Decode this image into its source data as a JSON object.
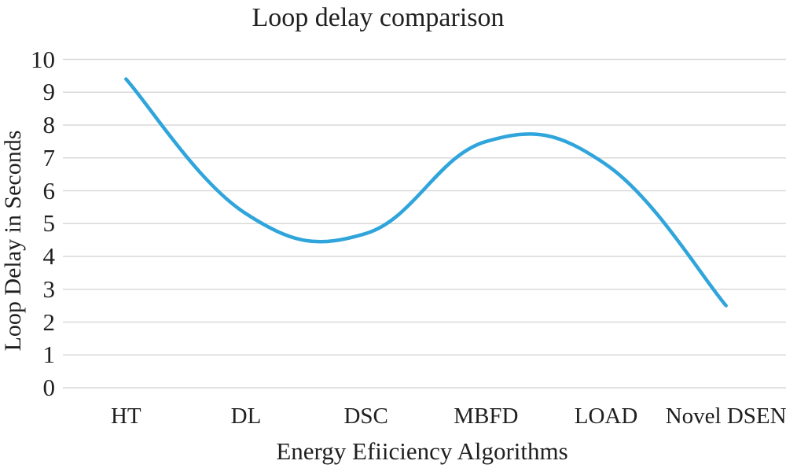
{
  "chart_data": {
    "type": "line",
    "title": "Loop delay comparison",
    "xlabel": "Energy Efiiciency Algorithms",
    "ylabel": "Loop Delay in Seconds",
    "categories": [
      "HT",
      "DL",
      "DSC",
      "MBFD",
      "LOAD",
      "Novel DSEN"
    ],
    "values": [
      9.4,
      5.3,
      4.7,
      7.5,
      6.8,
      2.5
    ],
    "ylim": [
      0,
      10
    ],
    "ytick_step": 1,
    "grid": "horizontal",
    "legend": "none",
    "smooth": true,
    "line_color": "#2FA5DB",
    "grid_color": "#D9D9D9",
    "text_color": "#1F1F1F"
  }
}
